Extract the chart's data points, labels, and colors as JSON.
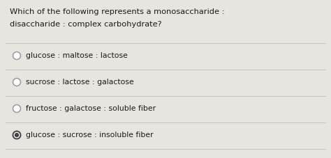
{
  "background_color": "#e8e5e1",
  "question_line1": "Which of the following represents a monosaccharide :",
  "question_line2": "disaccharide : complex carbohydrate?",
  "options": [
    "glucose : maltose : lactose",
    "sucrose : lactose : galactose",
    "fructose : galactose : soluble fiber",
    "glucose : sucrose : insoluble fiber"
  ],
  "selected_index": 3,
  "text_color": "#1a1a1a",
  "line_color": "#c8c4c0",
  "circle_color": "#999999",
  "selected_fill": "#444444",
  "font_size_question": 8.2,
  "font_size_option": 7.8
}
